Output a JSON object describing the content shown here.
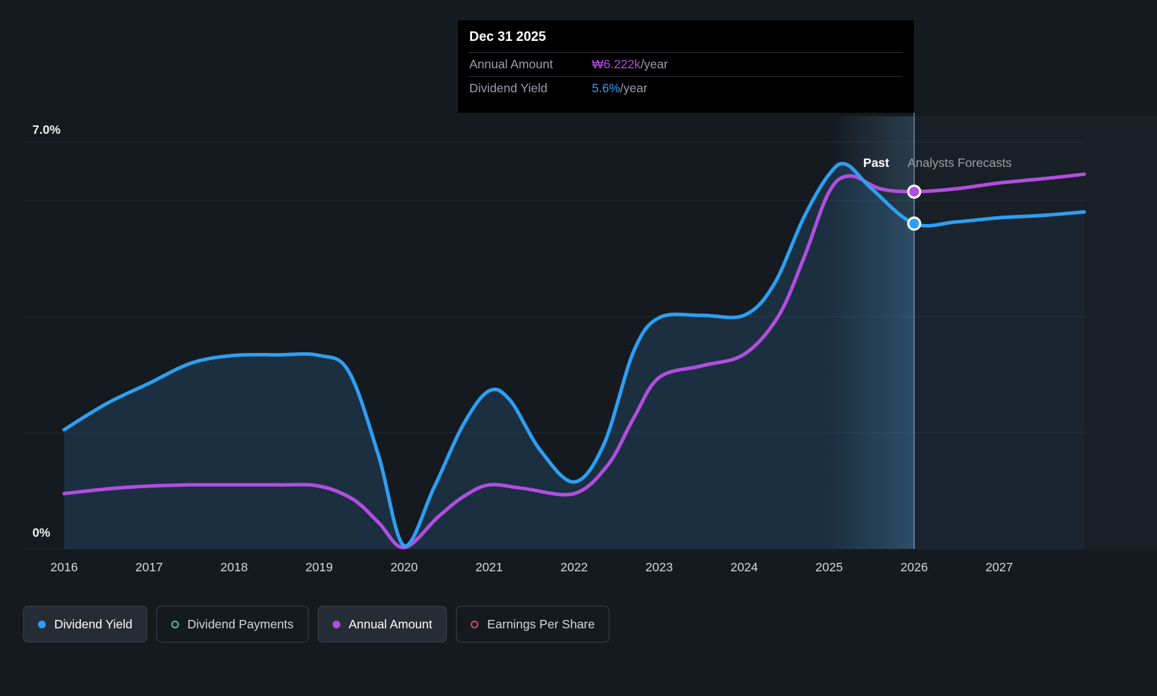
{
  "labels": {
    "past": "Past",
    "forecast": "Analysts Forecasts"
  },
  "tooltip": {
    "date": "Dec 31 2025",
    "rows": [
      {
        "label": "Annual Amount",
        "value": "₩6.222k",
        "suffix": "/year",
        "color": "#b14ee0"
      },
      {
        "label": "Dividend Yield",
        "value": "5.6%",
        "suffix": "/year",
        "color": "#2e9ff2"
      }
    ]
  },
  "axis": {
    "y_top_label": "7.0%",
    "y_bottom_label": "0%",
    "years": [
      "2016",
      "2017",
      "2018",
      "2019",
      "2020",
      "2021",
      "2022",
      "2023",
      "2024",
      "2025",
      "2026",
      "2027"
    ]
  },
  "legend": [
    {
      "label": "Dividend Yield",
      "marker_color": "#2e9ff2",
      "marker_style": "filled",
      "state": "active"
    },
    {
      "label": "Dividend Payments",
      "marker_color": "#45c4b0",
      "marker_style": "outline",
      "state": "inactive"
    },
    {
      "label": "Annual Amount",
      "marker_color": "#b14ee0",
      "marker_style": "filled",
      "state": "active"
    },
    {
      "label": "Earnings Per Share",
      "marker_color": "#d6456f",
      "marker_style": "outline",
      "state": "inactive"
    }
  ],
  "chart_data": {
    "type": "line",
    "title": "Dividend history and analysts forecasts",
    "x_range": [
      2016,
      2028
    ],
    "divider_year": 2026,
    "highlight_band": [
      2025,
      2026
    ],
    "y_axis": {
      "unit": "%",
      "min": 0,
      "max": 7,
      "top_label": "7.0%",
      "bottom_label": "0%",
      "gridlines_pct": [
        0,
        2,
        4,
        6,
        7
      ]
    },
    "x_ticks": [
      "2016",
      "2017",
      "2018",
      "2019",
      "2020",
      "2021",
      "2022",
      "2023",
      "2024",
      "2025",
      "2026",
      "2027"
    ],
    "series": [
      {
        "name": "Annual Amount",
        "color": "#b14ee0",
        "style": "line",
        "value_at_divider": "₩6.222k/year",
        "points": [
          [
            2016,
            0.95
          ],
          [
            2016.5,
            1.03
          ],
          [
            2017,
            1.08
          ],
          [
            2017.5,
            1.1
          ],
          [
            2018,
            1.1
          ],
          [
            2018.5,
            1.1
          ],
          [
            2019,
            1.08
          ],
          [
            2019.4,
            0.85
          ],
          [
            2019.7,
            0.45
          ],
          [
            2020,
            0.02
          ],
          [
            2020.4,
            0.55
          ],
          [
            2020.7,
            0.9
          ],
          [
            2021,
            1.1
          ],
          [
            2021.4,
            1.04
          ],
          [
            2022,
            0.95
          ],
          [
            2022.4,
            1.45
          ],
          [
            2022.7,
            2.25
          ],
          [
            2023,
            2.95
          ],
          [
            2023.5,
            3.15
          ],
          [
            2024,
            3.35
          ],
          [
            2024.4,
            4.0
          ],
          [
            2024.7,
            5.0
          ],
          [
            2025,
            6.15
          ],
          [
            2025.25,
            6.42
          ],
          [
            2025.6,
            6.2
          ],
          [
            2026,
            6.15
          ],
          [
            2026.5,
            6.2
          ],
          [
            2027,
            6.3
          ],
          [
            2027.5,
            6.37
          ],
          [
            2028,
            6.45
          ]
        ]
      },
      {
        "name": "Dividend Yield",
        "color": "#2e9ff2",
        "style": "line+area",
        "value_at_divider": "5.6%/year",
        "points": [
          [
            2016,
            2.05
          ],
          [
            2016.5,
            2.5
          ],
          [
            2017,
            2.85
          ],
          [
            2017.5,
            3.2
          ],
          [
            2018,
            3.33
          ],
          [
            2018.5,
            3.34
          ],
          [
            2019,
            3.33
          ],
          [
            2019.35,
            3.05
          ],
          [
            2019.7,
            1.6
          ],
          [
            2020,
            0.05
          ],
          [
            2020.35,
            1.05
          ],
          [
            2020.7,
            2.15
          ],
          [
            2021,
            2.72
          ],
          [
            2021.25,
            2.55
          ],
          [
            2021.6,
            1.7
          ],
          [
            2022,
            1.15
          ],
          [
            2022.35,
            1.8
          ],
          [
            2022.7,
            3.4
          ],
          [
            2023,
            3.98
          ],
          [
            2023.5,
            4.02
          ],
          [
            2024,
            4.02
          ],
          [
            2024.35,
            4.55
          ],
          [
            2024.7,
            5.7
          ],
          [
            2025,
            6.45
          ],
          [
            2025.2,
            6.62
          ],
          [
            2025.5,
            6.2
          ],
          [
            2026,
            5.6
          ],
          [
            2026.5,
            5.63
          ],
          [
            2027,
            5.7
          ],
          [
            2027.5,
            5.74
          ],
          [
            2028,
            5.8
          ]
        ]
      }
    ],
    "markers": [
      {
        "series": "Annual Amount",
        "x": 2026,
        "y": 6.15
      },
      {
        "series": "Dividend Yield",
        "x": 2026,
        "y": 5.6
      }
    ]
  }
}
